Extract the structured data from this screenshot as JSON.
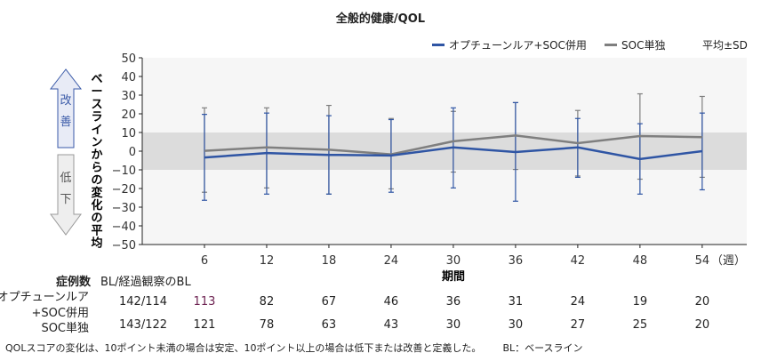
{
  "chart_data": {
    "type": "line",
    "title": "全般的健康/QOL",
    "xlabel": "期間",
    "x_unit": "（週）",
    "ylabel": "ベースラインからの変化の平均",
    "x": [
      6,
      12,
      18,
      24,
      30,
      36,
      42,
      48,
      54
    ],
    "xlim": [
      0,
      58.3
    ],
    "ylim": [
      -50,
      50
    ],
    "yticks": [
      50,
      40,
      30,
      20,
      10,
      0,
      -10,
      -20,
      -30,
      -40,
      -50
    ],
    "shaded_band": [
      -10,
      10
    ],
    "grid": false,
    "legend_position": "top-right",
    "error_label": "平均±SD",
    "series": [
      {
        "name": "オプチューンルア+SOC併用",
        "color": "#2f55a4",
        "values": [
          -3.4,
          -1,
          -2,
          -2.3,
          2,
          -0.5,
          2,
          -4.2,
          0
        ],
        "sd_upper": [
          19.7,
          20.4,
          19,
          16.9,
          23.2,
          26,
          17.5,
          14.7,
          20.4
        ],
        "sd_lower": [
          -26.3,
          -23,
          -23,
          -22,
          -19.7,
          -26.8,
          -14,
          -23,
          -20.7
        ]
      },
      {
        "name": "SOC単独",
        "color": "#7f7f7f",
        "values": [
          0.2,
          2,
          0.8,
          -1.7,
          5.3,
          8.4,
          4.3,
          8.1,
          7.5
        ],
        "sd_upper": [
          23.2,
          23.2,
          24.5,
          17.5,
          21.3,
          26,
          21.8,
          30.7,
          29.3
        ],
        "sd_lower": [
          -22,
          -19.7,
          -23,
          -20.2,
          -11.2,
          -9.8,
          -13.3,
          -15,
          -14
        ]
      }
    ]
  },
  "arrows": {
    "up": "改善",
    "down": "低下",
    "up_color": "#e8ebf6",
    "down_color": "#eeeeee"
  },
  "table": {
    "header": "症例数",
    "bl_header": "BL/経過観察のBL",
    "rows": [
      {
        "label1": "オプチューンルア",
        "label2": "+SOC併用",
        "bl": "142/114",
        "values": [
          "113",
          "82",
          "67",
          "46",
          "36",
          "31",
          "24",
          "19",
          "20"
        ]
      },
      {
        "label1": "SOC単独",
        "label2": "",
        "bl": "143/122",
        "values": [
          "121",
          "78",
          "63",
          "43",
          "30",
          "30",
          "27",
          "25",
          "20"
        ]
      }
    ]
  },
  "footnote": "QOLスコアの変化は、10ポイント未満の場合は安定、10ポイント以上の場合は低下または改善と定義した。",
  "footnote_bl": "BL：ベースライン"
}
